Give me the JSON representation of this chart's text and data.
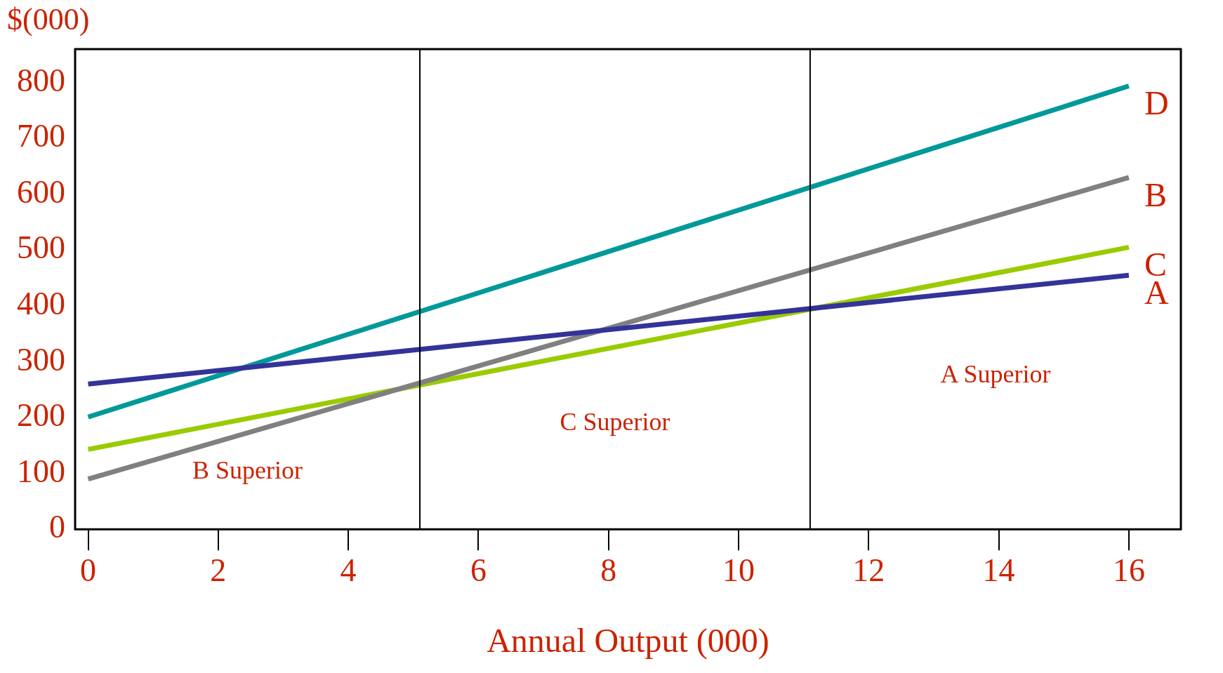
{
  "chart_data": {
    "type": "line",
    "ylabel": "$(000)",
    "xlabel": "Annual Output (000)",
    "x": [
      0,
      16
    ],
    "series": [
      {
        "name": "A",
        "color": "#333399",
        "values": [
          260,
          455
        ]
      },
      {
        "name": "B",
        "color": "#808080",
        "values": [
          90,
          630
        ]
      },
      {
        "name": "C",
        "color": "#99cc00",
        "values": [
          143,
          505
        ]
      },
      {
        "name": "D",
        "color": "#009999",
        "values": [
          201,
          794
        ]
      }
    ],
    "xlim": [
      -0.2,
      16.8
    ],
    "ylim": [
      0,
      860
    ],
    "xticks": [
      0,
      2,
      4,
      6,
      8,
      10,
      12,
      14,
      16
    ],
    "yticks": [
      0,
      100,
      200,
      300,
      400,
      500,
      600,
      700,
      800
    ],
    "ref_lines": [
      {
        "axis": "x",
        "value": 5.1,
        "color": "#000000"
      },
      {
        "axis": "x",
        "value": 11.1,
        "color": "#000000"
      }
    ],
    "annotations": [
      "B Superior",
      "C Superior",
      "A Superior"
    ],
    "grid": false,
    "legend": false,
    "marker": "none",
    "line_style": "solid"
  }
}
